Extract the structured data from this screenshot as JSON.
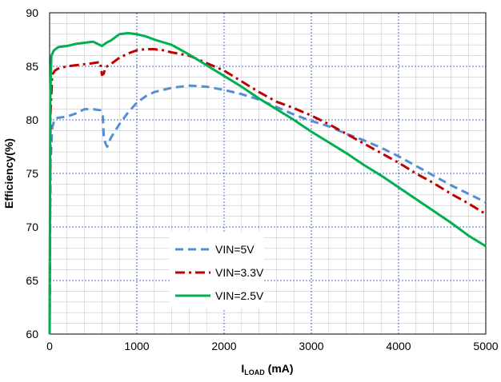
{
  "chart_data": {
    "type": "line",
    "title": "",
    "xlabel": {
      "main": "I",
      "sub": "LOAD",
      "unit": " (mA)"
    },
    "ylabel": "Efficiency(%)",
    "xlim": [
      0,
      5000
    ],
    "ylim": [
      60,
      90
    ],
    "xticks": [
      0,
      1000,
      2000,
      3000,
      4000,
      5000
    ],
    "yticks": [
      60,
      65,
      70,
      75,
      80,
      85,
      90
    ],
    "x_minor_step": 200,
    "y_minor_step": 1,
    "grid": true,
    "legend_position": "center-left",
    "series": [
      {
        "name": "VIN=5V",
        "color": "#558ED5",
        "dash": "dashed",
        "points": [
          [
            0,
            60
          ],
          [
            10,
            76
          ],
          [
            30,
            79.3
          ],
          [
            60,
            80.1
          ],
          [
            100,
            80.2
          ],
          [
            200,
            80.3
          ],
          [
            300,
            80.6
          ],
          [
            400,
            81.0
          ],
          [
            500,
            81.0
          ],
          [
            580,
            80.9
          ],
          [
            610,
            80.3
          ],
          [
            620,
            78.5
          ],
          [
            640,
            77.8
          ],
          [
            660,
            77.5
          ],
          [
            700,
            78.3
          ],
          [
            800,
            79.6
          ],
          [
            900,
            80.7
          ],
          [
            1000,
            81.6
          ],
          [
            1100,
            82.2
          ],
          [
            1200,
            82.6
          ],
          [
            1400,
            83.0
          ],
          [
            1600,
            83.2
          ],
          [
            1800,
            83.1
          ],
          [
            2000,
            82.8
          ],
          [
            2200,
            82.4
          ],
          [
            2400,
            81.9
          ],
          [
            2600,
            81.2
          ],
          [
            2800,
            80.5
          ],
          [
            3000,
            79.9
          ],
          [
            3200,
            79.4
          ],
          [
            3400,
            78.7
          ],
          [
            3600,
            78.1
          ],
          [
            3800,
            77.4
          ],
          [
            4000,
            76.6
          ],
          [
            4200,
            75.7
          ],
          [
            4400,
            74.8
          ],
          [
            4600,
            73.9
          ],
          [
            4800,
            73.1
          ],
          [
            5000,
            72.3
          ]
        ]
      },
      {
        "name": "VIN=3.3V",
        "color": "#C00000",
        "dash": "dashdot",
        "points": [
          [
            0,
            60
          ],
          [
            10,
            80.5
          ],
          [
            30,
            84.2
          ],
          [
            60,
            84.6
          ],
          [
            100,
            84.8
          ],
          [
            200,
            85.0
          ],
          [
            300,
            85.1
          ],
          [
            400,
            85.2
          ],
          [
            500,
            85.3
          ],
          [
            580,
            85.4
          ],
          [
            600,
            84.2
          ],
          [
            620,
            84.3
          ],
          [
            640,
            84.9
          ],
          [
            700,
            85.2
          ],
          [
            800,
            85.8
          ],
          [
            900,
            86.2
          ],
          [
            1000,
            86.5
          ],
          [
            1100,
            86.6
          ],
          [
            1200,
            86.6
          ],
          [
            1300,
            86.5
          ],
          [
            1400,
            86.3
          ],
          [
            1600,
            86.0
          ],
          [
            1800,
            85.3
          ],
          [
            2000,
            84.6
          ],
          [
            2200,
            83.6
          ],
          [
            2400,
            82.6
          ],
          [
            2600,
            81.7
          ],
          [
            2800,
            81.1
          ],
          [
            3000,
            80.4
          ],
          [
            3200,
            79.6
          ],
          [
            3400,
            78.7
          ],
          [
            3600,
            77.8
          ],
          [
            3800,
            76.9
          ],
          [
            4000,
            76.0
          ],
          [
            4200,
            75.0
          ],
          [
            4400,
            74.1
          ],
          [
            4600,
            73.1
          ],
          [
            4800,
            72.2
          ],
          [
            5000,
            71.2
          ]
        ]
      },
      {
        "name": "VIN=2.5V",
        "color": "#00B050",
        "dash": "solid",
        "points": [
          [
            0,
            60
          ],
          [
            8,
            82
          ],
          [
            20,
            86.0
          ],
          [
            50,
            86.5
          ],
          [
            100,
            86.8
          ],
          [
            200,
            86.9
          ],
          [
            300,
            87.1
          ],
          [
            400,
            87.2
          ],
          [
            500,
            87.3
          ],
          [
            550,
            87.1
          ],
          [
            600,
            86.9
          ],
          [
            650,
            87.2
          ],
          [
            700,
            87.4
          ],
          [
            750,
            87.7
          ],
          [
            800,
            88.0
          ],
          [
            900,
            88.1
          ],
          [
            1000,
            88.0
          ],
          [
            1100,
            87.8
          ],
          [
            1200,
            87.5
          ],
          [
            1400,
            87.0
          ],
          [
            1600,
            86.1
          ],
          [
            1800,
            85.1
          ],
          [
            2000,
            84.1
          ],
          [
            2200,
            83.1
          ],
          [
            2400,
            82.0
          ],
          [
            2600,
            81.0
          ],
          [
            2800,
            80.0
          ],
          [
            3000,
            78.9
          ],
          [
            3200,
            77.9
          ],
          [
            3400,
            76.9
          ],
          [
            3600,
            75.8
          ],
          [
            3800,
            74.8
          ],
          [
            4000,
            73.7
          ],
          [
            4200,
            72.6
          ],
          [
            4400,
            71.5
          ],
          [
            4600,
            70.4
          ],
          [
            4800,
            69.2
          ],
          [
            5000,
            68.2
          ]
        ]
      }
    ]
  }
}
